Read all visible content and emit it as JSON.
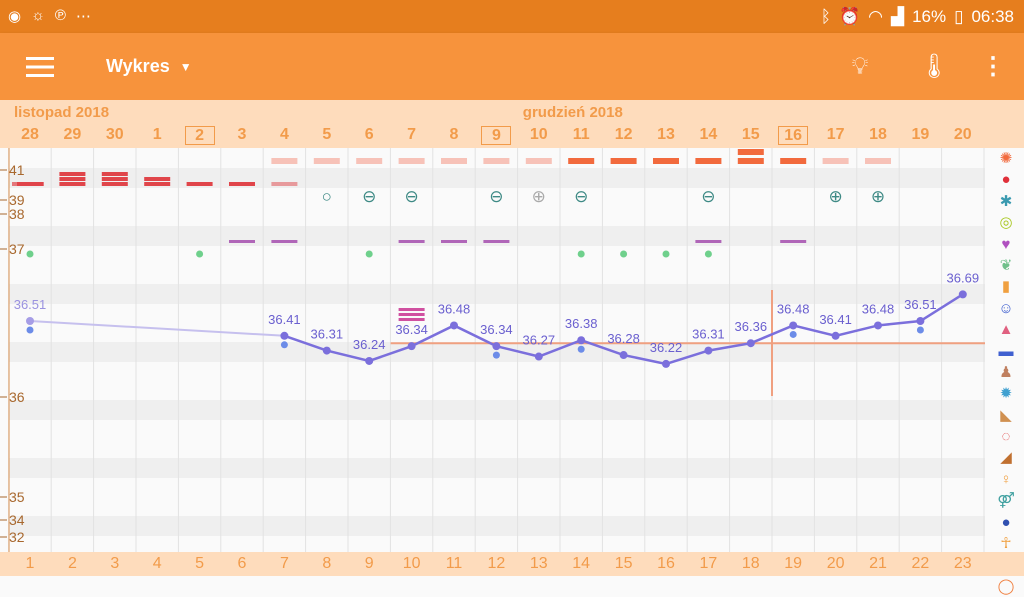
{
  "status": {
    "left_icons": [
      "messenger-icon",
      "weather-icon",
      "pinterest-icon",
      "more-icon"
    ],
    "battery": "16%",
    "time": "06:38"
  },
  "appbar": {
    "title": "Wykres"
  },
  "header": {
    "months": [
      {
        "label": "listopad 2018",
        "col": 0
      },
      {
        "label": "grudzień 2018",
        "col": 12
      }
    ],
    "days": [
      "28",
      "29",
      "30",
      "1",
      "2",
      "3",
      "4",
      "5",
      "6",
      "7",
      "8",
      "9",
      "10",
      "11",
      "12",
      "13",
      "14",
      "15",
      "16",
      "17",
      "18",
      "19",
      "20"
    ],
    "boxed_days": [
      "2",
      "9",
      "16"
    ]
  },
  "cycle_days": [
    "1",
    "2",
    "3",
    "4",
    "5",
    "6",
    "7",
    "8",
    "9",
    "10",
    "11",
    "12",
    "13",
    "14",
    "15",
    "16",
    "17",
    "18",
    "19",
    "20",
    "21",
    "22",
    "23"
  ],
  "y_axis_labels": [
    "41",
    "39",
    "38",
    "37",
    "36",
    "35",
    "34",
    "32"
  ],
  "temperatures": [
    {
      "col": 0,
      "v": 36.51,
      "label": "36.51"
    },
    {
      "col": 6,
      "v": 36.41,
      "label": "36.41"
    },
    {
      "col": 7,
      "v": 36.31,
      "label": "36.31"
    },
    {
      "col": 8,
      "v": 36.24,
      "label": "36.24"
    },
    {
      "col": 9,
      "v": 36.34,
      "label": "36.34"
    },
    {
      "col": 10,
      "v": 36.48,
      "label": "36.48"
    },
    {
      "col": 11,
      "v": 36.34,
      "label": "36.34"
    },
    {
      "col": 12,
      "v": 36.27,
      "label": "36.27"
    },
    {
      "col": 13,
      "v": 36.38,
      "label": "36.38"
    },
    {
      "col": 14,
      "v": 36.28,
      "label": "36.28"
    },
    {
      "col": 15,
      "v": 36.22,
      "label": "36.22"
    },
    {
      "col": 16,
      "v": 36.31,
      "label": "36.31"
    },
    {
      "col": 17,
      "v": 36.36,
      "label": "36.36"
    },
    {
      "col": 18,
      "v": 36.48,
      "label": "36.48"
    },
    {
      "col": 19,
      "v": 36.41,
      "label": "36.41"
    },
    {
      "col": 20,
      "v": 36.48,
      "label": "36.48"
    },
    {
      "col": 21,
      "v": 36.51,
      "label": "36.51"
    },
    {
      "col": 22,
      "v": 36.69,
      "label": "36.69"
    }
  ],
  "secondary_points": [
    0,
    6,
    11,
    13,
    18,
    21
  ],
  "coverline": 36.36,
  "ovulation_col": 17.5,
  "bleeding": {
    "light": [
      6,
      7,
      8,
      9,
      10,
      11,
      12,
      19,
      20
    ],
    "strong": [
      13,
      14,
      15,
      16,
      17,
      18
    ],
    "double": [
      17
    ]
  },
  "menstruation": {
    "1": [
      0,
      4,
      5
    ],
    "2": [
      3
    ],
    "3": [
      1,
      2
    ],
    "spotted": [
      6
    ]
  },
  "tests": [
    {
      "col": 7,
      "sym": "○"
    },
    {
      "col": 8,
      "sym": "⊖"
    },
    {
      "col": 9,
      "sym": "⊖"
    },
    {
      "col": 11,
      "sym": "⊖"
    },
    {
      "col": 12,
      "sym": "⊕",
      "faded": true
    },
    {
      "col": 13,
      "sym": "⊖"
    },
    {
      "col": 16,
      "sym": "⊖"
    },
    {
      "col": 19,
      "sym": "⊕"
    },
    {
      "col": 20,
      "sym": "⊕"
    }
  ],
  "purple": [
    5,
    6,
    9,
    10,
    11,
    16,
    18
  ],
  "green_dots": [
    0,
    4,
    8,
    13,
    14,
    15,
    16
  ],
  "mucus_col": 9,
  "colors": {
    "line": "#7b6fdc",
    "label": "#6a5fcf",
    "menses": "#e0454a",
    "bleed": "#f26a3d",
    "bleed_light": "#f7c2b8",
    "purple": "#b066b8",
    "green": "#6fd08c",
    "test": "#3e8a85",
    "cover": "#f0a080"
  },
  "side_icons": [
    {
      "n": "flower-icon",
      "g": "✺",
      "c": "#f26a3d"
    },
    {
      "n": "drop-icon",
      "g": "●",
      "c": "#e0303a"
    },
    {
      "n": "splash-icon",
      "g": "✱",
      "c": "#3a9ab0"
    },
    {
      "n": "rings-icon",
      "g": "◎",
      "c": "#a8c820"
    },
    {
      "n": "heart-icon",
      "g": "♥",
      "c": "#b050c0"
    },
    {
      "n": "leaf-icon",
      "g": "❦",
      "c": "#6fc08a"
    },
    {
      "n": "bottle-icon",
      "g": "▮",
      "c": "#f0a040"
    },
    {
      "n": "smiley-icon",
      "g": "☺",
      "c": "#4060d0"
    },
    {
      "n": "bell-icon",
      "g": "▲",
      "c": "#e06080"
    },
    {
      "n": "document-icon",
      "g": "▬",
      "c": "#4060d0"
    },
    {
      "n": "person-icon",
      "g": "♟",
      "c": "#c08060"
    },
    {
      "n": "sun-icon",
      "g": "✹",
      "c": "#40a0d0"
    },
    {
      "n": "foot-icon",
      "g": "◣",
      "c": "#d09050"
    },
    {
      "n": "drop-dotted-icon",
      "g": "◌",
      "c": "#e04040"
    },
    {
      "n": "arm-icon",
      "g": "◢",
      "c": "#c07030"
    },
    {
      "n": "pregnant-icon",
      "g": "♀",
      "c": "#f0a040"
    },
    {
      "n": "couple-icon",
      "g": "⚤",
      "c": "#40a0a0"
    },
    {
      "n": "pin-icon",
      "g": "●",
      "c": "#3050b0"
    },
    {
      "n": "figure-icon",
      "g": "☥",
      "c": "#f0a040"
    },
    {
      "n": "monitor-icon",
      "g": "▣",
      "c": "#f0a040"
    },
    {
      "n": "cycle-icon",
      "g": "◯",
      "c": "#f08040"
    }
  ]
}
